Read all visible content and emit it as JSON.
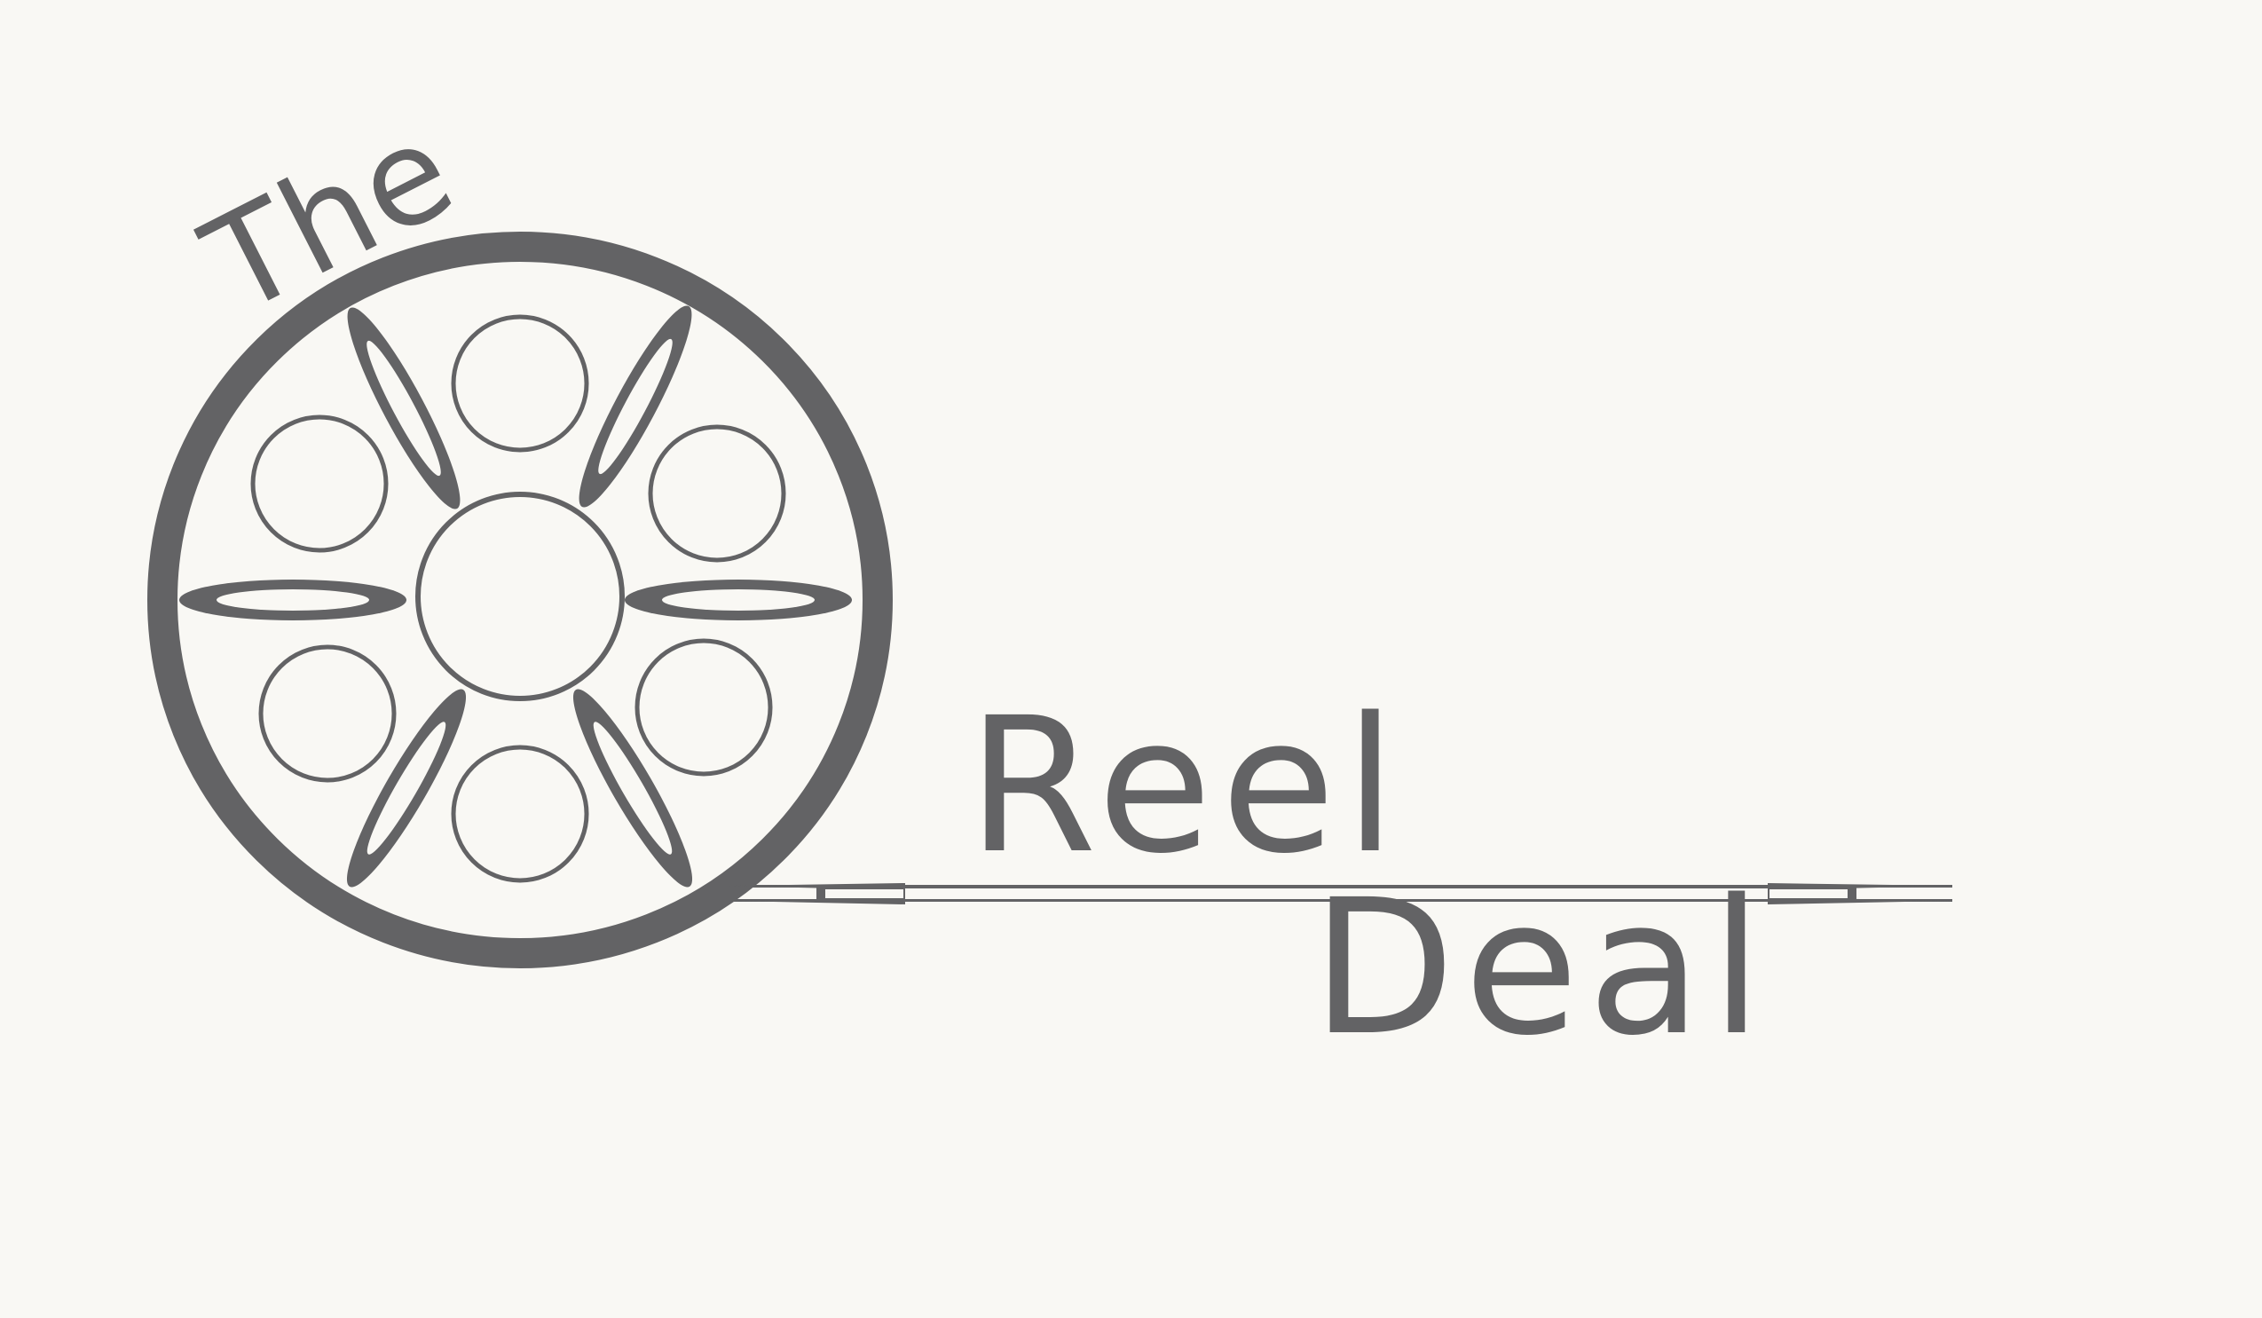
{
  "logo": {
    "word_the": "The",
    "word_reel": "Reel",
    "word_deal": "Deal",
    "icon": "film-reel-icon",
    "colors": {
      "background": "#f9f8f4",
      "ink": "#636365"
    }
  }
}
